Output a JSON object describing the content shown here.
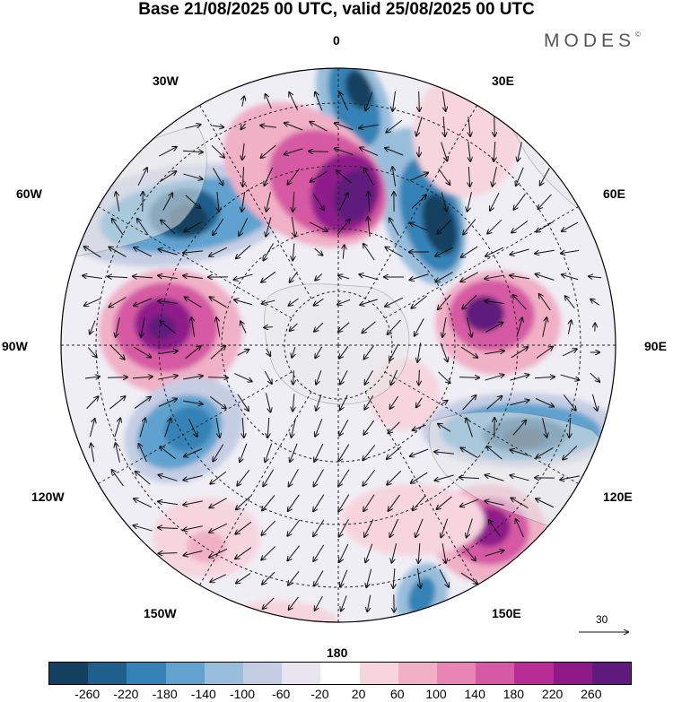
{
  "title": "Base 21/08/2025 00 UTC, valid 25/08/2025 00 UTC",
  "brand": {
    "name": "MODES",
    "mark": "©"
  },
  "longitude_labels": {
    "lon_0": "0",
    "lon_30e": "30E",
    "lon_60e": "60E",
    "lon_90e": "90E",
    "lon_120e": "120E",
    "lon_150e": "150E",
    "lon_180": "180",
    "lon_150w": "150W",
    "lon_120w": "120W",
    "lon_90w": "90W",
    "lon_60w": "60W",
    "lon_30w": "30W"
  },
  "reference_vector": {
    "label": "30"
  },
  "colorbar": {
    "colors": [
      "#14405f",
      "#1f5f8c",
      "#3582b6",
      "#61a2cf",
      "#99bedc",
      "#c5cde3",
      "#e8e4f0",
      "#ffffff",
      "#f6d5de",
      "#f0b0c6",
      "#e885b3",
      "#d55aa3",
      "#b82c95",
      "#8e1a8a",
      "#5e1a7c"
    ],
    "ticks": [
      "-260",
      "-220",
      "-180",
      "-140",
      "-100",
      "-60",
      "-20",
      "20",
      "60",
      "100",
      "140",
      "180",
      "220",
      "260"
    ]
  },
  "map_colors": {
    "land": "#e8e8e8",
    "coast": "#888888",
    "grid": "#222222",
    "arrow": "#111111"
  }
}
